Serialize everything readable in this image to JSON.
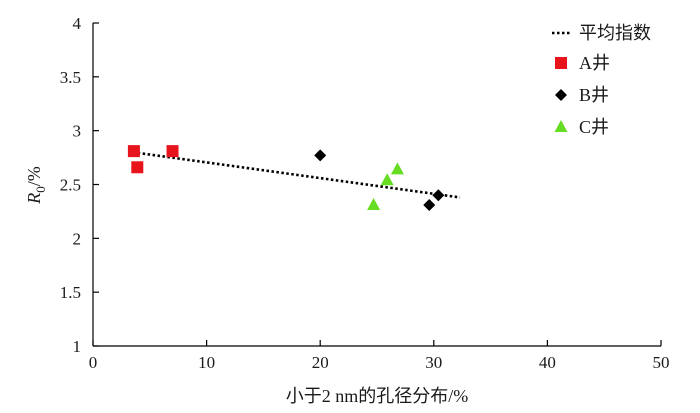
{
  "chart_data": {
    "type": "scatter",
    "title": "",
    "xlabel": "小于2 nm的孔径分布/%",
    "ylabel_main": "R",
    "ylabel_sub": "0",
    "ylabel_unit": "/%",
    "xlim": [
      0,
      50
    ],
    "ylim": [
      1,
      4
    ],
    "xticks": [
      0,
      10,
      20,
      30,
      40,
      50
    ],
    "yticks": [
      1,
      1.5,
      2,
      2.5,
      3,
      3.5,
      4
    ],
    "xtick_labels": [
      "0",
      "10",
      "20",
      "30",
      "40",
      "50"
    ],
    "ytick_labels": [
      "1",
      "1.5",
      "2",
      "2.5",
      "3",
      "3.5",
      "4"
    ],
    "grid": false,
    "legend_position": "top-right",
    "series": [
      {
        "name": "平均指数",
        "kind": "line",
        "style": "dotted",
        "color": "#000000",
        "points": [
          [
            3.5,
            2.8
          ],
          [
            32.3,
            2.38
          ]
        ]
      },
      {
        "name": "A井",
        "kind": "marker",
        "marker": "square",
        "color": "#e8141b",
        "points": [
          [
            3.6,
            2.81
          ],
          [
            3.9,
            2.66
          ],
          [
            7.0,
            2.81
          ]
        ]
      },
      {
        "name": "B井",
        "kind": "marker",
        "marker": "diamond",
        "color": "#000000",
        "points": [
          [
            20.0,
            2.77
          ],
          [
            29.6,
            2.31
          ],
          [
            30.4,
            2.4
          ]
        ]
      },
      {
        "name": "C井",
        "kind": "marker",
        "marker": "triangle",
        "color": "#66dd22",
        "points": [
          [
            24.7,
            2.31
          ],
          [
            25.9,
            2.54
          ],
          [
            26.8,
            2.64
          ]
        ]
      }
    ]
  }
}
